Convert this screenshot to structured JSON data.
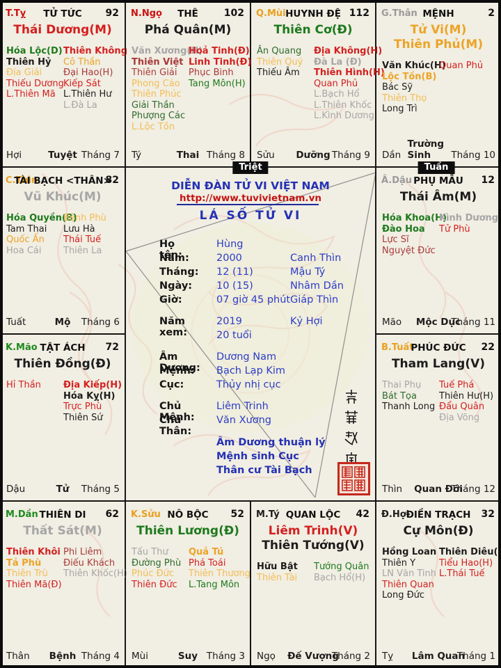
{
  "colors": {
    "red": "#d42020",
    "crimson": "#a83a3a",
    "orange": "#eca427",
    "gold": "#f2bd55",
    "green": "#1d7a1d",
    "dgreen": "#2e6b2e",
    "gray": "#a6a6a6",
    "black": "#1c1c1c",
    "branch_red": "#cc1111",
    "branch_orange": "#e8a020",
    "branch_gray": "#9a9a9a",
    "branch_green": "#1d8a1d",
    "blue": "#2431b4",
    "value_blue": "#2c3dc8",
    "url_red": "#c41414"
  },
  "badges": {
    "triet": "Triệt",
    "tuan": "Tuần"
  },
  "center": {
    "forum_title": "DIỄN ĐÀN TỬ VI VIỆT NAM",
    "url": "http://www.tuvivietnam.vn",
    "chart_title": "LÁ SỐ TỬ VI",
    "rows": [
      {
        "label": "Họ tên:",
        "v1": "Hùng",
        "v2": "",
        "gap": false
      },
      {
        "label": "Năm:",
        "v1": "2000",
        "v2": "Canh Thìn",
        "gap": false
      },
      {
        "label": "Tháng:",
        "v1": "12 (11)",
        "v2": "Mậu Tý",
        "gap": false
      },
      {
        "label": "Ngày:",
        "v1": "10 (15)",
        "v2": "Nhâm Dần",
        "gap": false
      },
      {
        "label": "Giờ:",
        "v1": "07 giờ 45 phút",
        "v2": "Giáp Thìn",
        "gap": false
      },
      {
        "label": "Năm xem:",
        "v1": "2019",
        "v2": "Kỷ Hợi",
        "gap": true
      },
      {
        "label": "",
        "v1": "20 tuổi",
        "v2": "",
        "gap": false
      },
      {
        "label": "Âm Dương:",
        "v1": "Dương Nam",
        "v2": "",
        "gap": true
      },
      {
        "label": "Mệnh:",
        "v1": "Bạch Lạp Kim",
        "v2": "",
        "gap": false
      },
      {
        "label": "Cục:",
        "v1": "Thủy nhị cục",
        "v2": "",
        "gap": false
      },
      {
        "label": "Chủ Mệnh:",
        "v1": "Liêm Trinh",
        "v2": "",
        "gap": true
      },
      {
        "label": "Chủ Thân:",
        "v1": "Văn Xương",
        "v2": "",
        "gap": false
      }
    ],
    "notes": [
      "Âm Dương thuận lý",
      "Mệnh sinh Cục",
      "Thân cư Tài Bạch"
    ],
    "vertical_text": "紫薇越南",
    "seal_name": "red-seal-stamp"
  },
  "palaces": [
    {
      "key": "tu-tuc",
      "col": 0,
      "row": 0,
      "branch": "T.Tỵ",
      "branch_color": "branch_red",
      "name": "TỬ TỨC",
      "number": "92",
      "main": [
        {
          "t": "Thái Dương(M)",
          "c": "red"
        }
      ],
      "left": [
        {
          "t": "Hóa Lộc(D)",
          "c": "green",
          "b": true
        },
        {
          "t": "Thiên Hỷ",
          "c": "black",
          "b": true
        },
        {
          "t": "Địa Giải",
          "c": "gold",
          "b": false
        },
        {
          "t": "Thiếu Dương",
          "c": "red",
          "b": false
        },
        {
          "t": "L.Thiên Mã",
          "c": "red",
          "b": false
        }
      ],
      "right": [
        {
          "t": "Thiên Không",
          "c": "red",
          "b": true
        },
        {
          "t": "Cô Thần",
          "c": "orange",
          "b": false
        },
        {
          "t": "Đại Hao(H)",
          "c": "crimson",
          "b": false
        },
        {
          "t": "Kiếp Sát",
          "c": "red",
          "b": false
        },
        {
          "t": "L.Thiên Hư",
          "c": "black",
          "b": false
        },
        {
          "t": "L.Đà La",
          "c": "gray",
          "b": false
        }
      ],
      "footer_branch": "Hợi",
      "footer_stage": "Tuyệt",
      "footer_month": "Tháng 7"
    },
    {
      "key": "the",
      "col": 1,
      "row": 0,
      "branch": "N.Ngọ",
      "branch_color": "branch_red",
      "name": "THÊ",
      "number": "102",
      "main": [
        {
          "t": "Phá Quân(M)",
          "c": "black"
        }
      ],
      "left": [
        {
          "t": "Văn Xương(H)",
          "c": "gray",
          "b": true
        },
        {
          "t": "Thiên Việt",
          "c": "crimson",
          "b": true
        },
        {
          "t": "Thiên Giải",
          "c": "crimson",
          "b": false
        },
        {
          "t": "Phong Cáo",
          "c": "gold",
          "b": false
        },
        {
          "t": "Thiên Phúc",
          "c": "gold",
          "b": false
        },
        {
          "t": "Giải Thần",
          "c": "dgreen",
          "b": false
        },
        {
          "t": "Phượng Các",
          "c": "dgreen",
          "b": false
        },
        {
          "t": "L.Lộc Tồn",
          "c": "gold",
          "b": false
        }
      ],
      "right": [
        {
          "t": "Hoả Tinh(Đ)",
          "c": "red",
          "b": true
        },
        {
          "t": "Linh Tinh(Đ)",
          "c": "red",
          "b": true
        },
        {
          "t": "Phục Binh",
          "c": "crimson",
          "b": false
        },
        {
          "t": "Tang Môn(H)",
          "c": "green",
          "b": false
        }
      ],
      "footer_branch": "Tý",
      "footer_stage": "Thai",
      "footer_month": "Tháng 8"
    },
    {
      "key": "huynh-de",
      "col": 2,
      "row": 0,
      "branch": "Q.Mùi",
      "branch_color": "branch_orange",
      "name": "HUYNH ĐỆ",
      "number": "112",
      "main": [
        {
          "t": "Thiên Cơ(Đ)",
          "c": "green"
        }
      ],
      "left": [
        {
          "t": "Ân Quang",
          "c": "dgreen",
          "b": false
        },
        {
          "t": "Thiên Quý",
          "c": "gold",
          "b": false
        },
        {
          "t": "Thiếu Âm",
          "c": "black",
          "b": false
        }
      ],
      "right": [
        {
          "t": "Địa Không(H)",
          "c": "red",
          "b": true
        },
        {
          "t": "Đà La (Đ)",
          "c": "gray",
          "b": true
        },
        {
          "t": "Thiên Hình(H)",
          "c": "red",
          "b": true
        },
        {
          "t": "Quan Phủ",
          "c": "red",
          "b": false
        },
        {
          "t": "L.Bạch Hổ",
          "c": "gray",
          "b": false
        },
        {
          "t": "L.Thiên Khốc",
          "c": "gray",
          "b": false
        },
        {
          "t": "L.Kình Dương",
          "c": "gray",
          "b": false
        }
      ],
      "footer_branch": "Sửu",
      "footer_stage": "Dưỡng",
      "footer_month": "Tháng 9"
    },
    {
      "key": "menh",
      "col": 3,
      "row": 0,
      "branch": "G.Thân",
      "branch_color": "branch_gray",
      "name": "MỆNH",
      "number": "2",
      "main": [
        {
          "t": "Tử Vi(M)",
          "c": "orange"
        },
        {
          "t": "Thiên Phủ(M)",
          "c": "orange"
        }
      ],
      "left": [
        {
          "t": "Văn Khúc(H)",
          "c": "black",
          "b": true
        },
        {
          "t": "Lộc Tồn(B)",
          "c": "orange",
          "b": true
        },
        {
          "t": "Bác Sỹ",
          "c": "black",
          "b": false
        },
        {
          "t": "Thiên Thọ",
          "c": "gold",
          "b": false
        },
        {
          "t": "Long Trì",
          "c": "black",
          "b": false
        }
      ],
      "right": [
        {
          "t": "Quan Phủ",
          "c": "red",
          "b": false
        }
      ],
      "footer_branch": "Dần",
      "footer_stage": "Trường Sinh",
      "footer_month": "Tháng 10"
    },
    {
      "key": "tai-bach",
      "col": 0,
      "row": 1,
      "branch": "C.Thìn",
      "branch_color": "branch_orange",
      "name": "TÀI BẠCH <THÂN>",
      "number": "82",
      "main": [
        {
          "t": "Vũ Khúc(M)",
          "c": "gray"
        }
      ],
      "left": [
        {
          "t": "Hóa Quyền(B)",
          "c": "green",
          "b": true
        },
        {
          "t": "Tam Thai",
          "c": "black",
          "b": false
        },
        {
          "t": "Quốc Ấn",
          "c": "orange",
          "b": false
        },
        {
          "t": "Hoa Cái",
          "c": "gray",
          "b": false
        }
      ],
      "right": [
        {
          "t": "Bệnh Phù",
          "c": "gold",
          "b": false
        },
        {
          "t": "Lưu Hà",
          "c": "black",
          "b": false
        },
        {
          "t": "Thái Tuế",
          "c": "red",
          "b": false
        },
        {
          "t": "Thiên La",
          "c": "gray",
          "b": false
        }
      ],
      "footer_branch": "Tuất",
      "footer_stage": "Mộ",
      "footer_month": "Tháng 6"
    },
    {
      "key": "phu-mau",
      "col": 3,
      "row": 1,
      "branch": "Â.Dậu",
      "branch_color": "branch_gray",
      "name": "PHỤ MẪU",
      "number": "12",
      "main": [
        {
          "t": "Thái Âm(M)",
          "c": "black"
        }
      ],
      "left": [
        {
          "t": "Hóa Khoa(H)",
          "c": "green",
          "b": true
        },
        {
          "t": "Đào Hoa",
          "c": "green",
          "b": true
        },
        {
          "t": "Lực Sĩ",
          "c": "crimson",
          "b": false
        },
        {
          "t": "Nguyệt Đức",
          "c": "crimson",
          "b": false
        }
      ],
      "right": [
        {
          "t": "Kình Dương(H)",
          "c": "gray",
          "b": true
        },
        {
          "t": "Tử Phù",
          "c": "red",
          "b": false
        }
      ],
      "footer_branch": "Mão",
      "footer_stage": "Mộc Dục",
      "footer_month": "Tháng 11"
    },
    {
      "key": "tat-ach",
      "col": 0,
      "row": 2,
      "branch": "K.Mão",
      "branch_color": "branch_green",
      "name": "TẬT ÁCH",
      "number": "72",
      "main": [
        {
          "t": "Thiên Đồng(Đ)",
          "c": "black"
        }
      ],
      "left": [
        {
          "t": "Hỉ Thần",
          "c": "red",
          "b": false
        }
      ],
      "right": [
        {
          "t": "Địa Kiếp(H)",
          "c": "red",
          "b": true
        },
        {
          "t": "Hóa Kỵ(H)",
          "c": "black",
          "b": true
        },
        {
          "t": "Trực Phù",
          "c": "red",
          "b": false
        },
        {
          "t": "Thiên Sứ",
          "c": "black",
          "b": false
        }
      ],
      "footer_branch": "Dậu",
      "footer_stage": "Tử",
      "footer_month": "Tháng 5"
    },
    {
      "key": "phuc-duc",
      "col": 3,
      "row": 2,
      "branch": "B.Tuất",
      "branch_color": "branch_orange",
      "name": "PHÚC ĐỨC",
      "number": "22",
      "main": [
        {
          "t": "Tham Lang(V)",
          "c": "black"
        }
      ],
      "left": [
        {
          "t": "Thai Phụ",
          "c": "gray",
          "b": false
        },
        {
          "t": "Bát Tọa",
          "c": "dgreen",
          "b": false
        },
        {
          "t": "Thanh Long",
          "c": "black",
          "b": false
        }
      ],
      "right": [
        {
          "t": "Tuế Phá",
          "c": "red",
          "b": false
        },
        {
          "t": "Thiên Hư(H)",
          "c": "black",
          "b": false
        },
        {
          "t": "Đẩu Quân",
          "c": "red",
          "b": false
        },
        {
          "t": "Địa Võng",
          "c": "gray",
          "b": false
        }
      ],
      "footer_branch": "Thìn",
      "footer_stage": "Quan Đới",
      "footer_month": "Tháng 12"
    },
    {
      "key": "thien-di",
      "col": 0,
      "row": 3,
      "branch": "M.Dần",
      "branch_color": "branch_green",
      "name": "THIÊN DI",
      "number": "62",
      "main": [
        {
          "t": "Thất Sát(M)",
          "c": "gray"
        }
      ],
      "left": [
        {
          "t": "Thiên Khôi",
          "c": "red",
          "b": true
        },
        {
          "t": "Tả Phù",
          "c": "orange",
          "b": true
        },
        {
          "t": "Thiên Trù",
          "c": "gold",
          "b": false
        },
        {
          "t": "Thiên Mã(Đ)",
          "c": "red",
          "b": false
        }
      ],
      "right": [
        {
          "t": "Phi Liêm",
          "c": "crimson",
          "b": false
        },
        {
          "t": "Điếu Khách",
          "c": "crimson",
          "b": false
        },
        {
          "t": "Thiên Khốc(H)",
          "c": "gray",
          "b": false
        }
      ],
      "footer_branch": "Thân",
      "footer_stage": "Bệnh",
      "footer_month": "Tháng 4"
    },
    {
      "key": "no-boc",
      "col": 1,
      "row": 3,
      "branch": "K.Sửu",
      "branch_color": "branch_orange",
      "name": "NÔ BỘC",
      "number": "52",
      "main": [
        {
          "t": "Thiên Lương(Đ)",
          "c": "green"
        }
      ],
      "left": [
        {
          "t": "Tấu Thư",
          "c": "gray",
          "b": false
        },
        {
          "t": "Đường Phù",
          "c": "dgreen",
          "b": false
        },
        {
          "t": "Phúc Đức",
          "c": "gold",
          "b": false
        },
        {
          "t": "Thiên Đức",
          "c": "red",
          "b": false
        }
      ],
      "right": [
        {
          "t": "Quả Tú",
          "c": "orange",
          "b": true
        },
        {
          "t": "Phá Toái",
          "c": "red",
          "b": false
        },
        {
          "t": "Thiên Thương",
          "c": "gold",
          "b": false
        },
        {
          "t": "L.Tang Môn",
          "c": "green",
          "b": false
        }
      ],
      "footer_branch": "Mùi",
      "footer_stage": "Suy",
      "footer_month": "Tháng 3"
    },
    {
      "key": "quan-loc",
      "col": 2,
      "row": 3,
      "branch": "M.Tý",
      "branch_color": "black",
      "name": "QUAN LỘC",
      "number": "42",
      "main": [
        {
          "t": "Liêm Trinh(V)",
          "c": "red"
        },
        {
          "t": "Thiên Tướng(V)",
          "c": "black"
        }
      ],
      "left": [
        {
          "t": "Hữu Bật",
          "c": "black",
          "b": true
        },
        {
          "t": "Thiên Tài",
          "c": "gold",
          "b": false
        }
      ],
      "right": [
        {
          "t": "Tướng Quân",
          "c": "green",
          "b": false
        },
        {
          "t": "Bạch Hổ(H)",
          "c": "gray",
          "b": false
        }
      ],
      "footer_branch": "Ngọ",
      "footer_stage": "Đế Vượng",
      "footer_month": "Tháng 2"
    },
    {
      "key": "dien-trach",
      "col": 3,
      "row": 3,
      "branch": "Đ.Hợi",
      "branch_color": "black",
      "name": "ĐIỀN TRẠCH",
      "number": "32",
      "main": [
        {
          "t": "Cự Môn(Đ)",
          "c": "black"
        }
      ],
      "left": [
        {
          "t": "Hồng Loan",
          "c": "black",
          "b": true
        },
        {
          "t": "Thiên Y",
          "c": "black",
          "b": false
        },
        {
          "t": "LN Văn Tinh",
          "c": "gray",
          "b": false
        },
        {
          "t": "Thiên Quan",
          "c": "red",
          "b": false
        },
        {
          "t": "Long Đức",
          "c": "black",
          "b": false
        }
      ],
      "right": [
        {
          "t": "Thiên Diêu(H)",
          "c": "black",
          "b": true
        },
        {
          "t": "Tiểu Hao(H)",
          "c": "red",
          "b": false
        },
        {
          "t": "L.Thái Tuế",
          "c": "red",
          "b": false
        }
      ],
      "footer_branch": "Tỵ",
      "footer_stage": "Lâm Quan",
      "footer_month": "Tháng 1"
    }
  ]
}
